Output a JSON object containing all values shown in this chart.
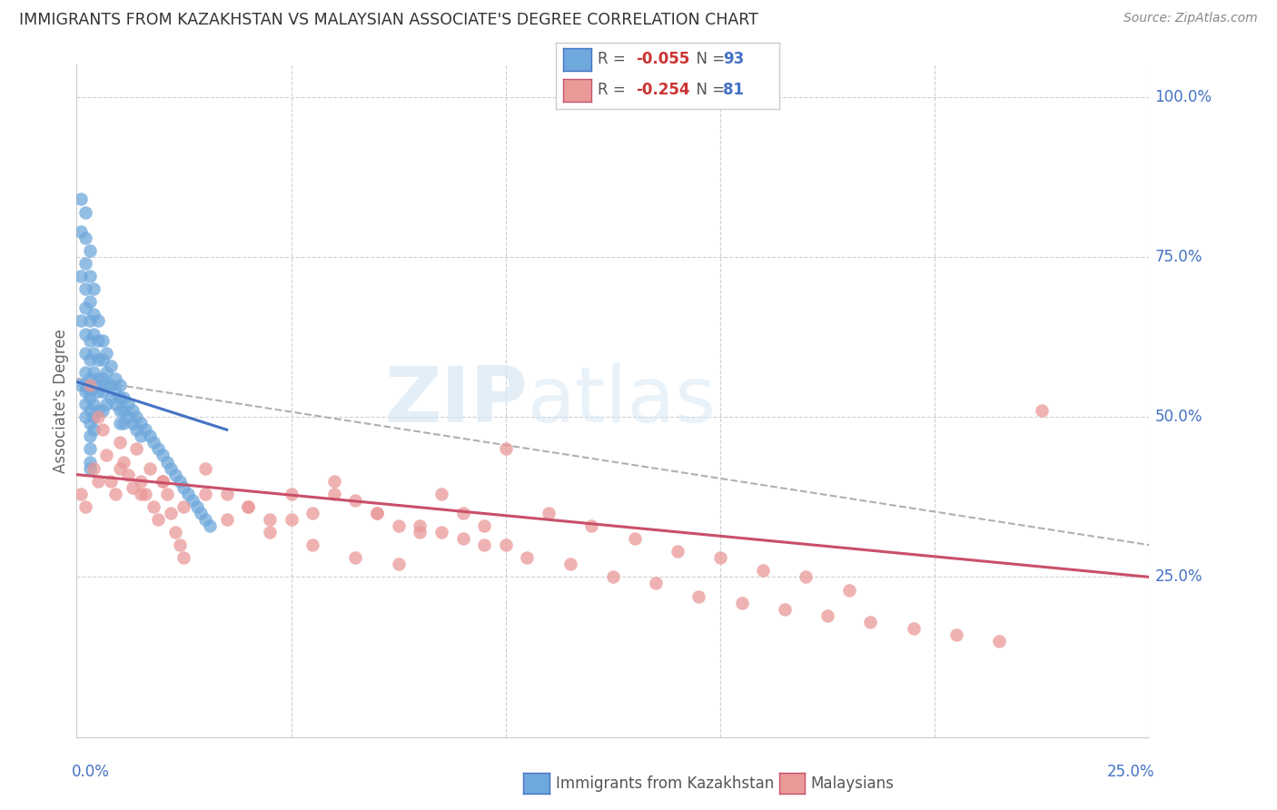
{
  "title": "IMMIGRANTS FROM KAZAKHSTAN VS MALAYSIAN ASSOCIATE'S DEGREE CORRELATION CHART",
  "source": "Source: ZipAtlas.com",
  "ylabel": "Associate's Degree",
  "color_kaz": "#6fa8dc",
  "color_mal": "#ea9999",
  "trendline_kaz_color": "#4472c4",
  "trendline_mal_color": "#c9506a",
  "trendline_dashed_color": "#b0b0b0",
  "background_color": "#ffffff",
  "grid_color": "#d0d0d0",
  "kaz_x": [
    0.001,
    0.001,
    0.001,
    0.001,
    0.002,
    0.002,
    0.002,
    0.002,
    0.002,
    0.002,
    0.002,
    0.002,
    0.002,
    0.002,
    0.002,
    0.003,
    0.003,
    0.003,
    0.003,
    0.003,
    0.003,
    0.003,
    0.003,
    0.003,
    0.003,
    0.003,
    0.003,
    0.003,
    0.003,
    0.004,
    0.004,
    0.004,
    0.004,
    0.004,
    0.004,
    0.004,
    0.004,
    0.004,
    0.005,
    0.005,
    0.005,
    0.005,
    0.005,
    0.005,
    0.006,
    0.006,
    0.006,
    0.006,
    0.006,
    0.007,
    0.007,
    0.007,
    0.007,
    0.008,
    0.008,
    0.008,
    0.009,
    0.009,
    0.009,
    0.01,
    0.01,
    0.01,
    0.01,
    0.011,
    0.011,
    0.011,
    0.012,
    0.012,
    0.013,
    0.013,
    0.014,
    0.014,
    0.015,
    0.015,
    0.016,
    0.017,
    0.018,
    0.019,
    0.02,
    0.021,
    0.022,
    0.023,
    0.024,
    0.025,
    0.026,
    0.027,
    0.028,
    0.029,
    0.03,
    0.031,
    0.001,
    0.002,
    0.003
  ],
  "kaz_y": [
    0.84,
    0.79,
    0.72,
    0.65,
    0.82,
    0.78,
    0.74,
    0.7,
    0.67,
    0.63,
    0.6,
    0.57,
    0.55,
    0.52,
    0.5,
    0.76,
    0.72,
    0.68,
    0.65,
    0.62,
    0.59,
    0.56,
    0.54,
    0.51,
    0.49,
    0.47,
    0.45,
    0.43,
    0.42,
    0.7,
    0.66,
    0.63,
    0.6,
    0.57,
    0.55,
    0.52,
    0.5,
    0.48,
    0.65,
    0.62,
    0.59,
    0.56,
    0.54,
    0.51,
    0.62,
    0.59,
    0.56,
    0.54,
    0.51,
    0.6,
    0.57,
    0.55,
    0.52,
    0.58,
    0.55,
    0.53,
    0.56,
    0.54,
    0.52,
    0.55,
    0.53,
    0.51,
    0.49,
    0.53,
    0.51,
    0.49,
    0.52,
    0.5,
    0.51,
    0.49,
    0.5,
    0.48,
    0.49,
    0.47,
    0.48,
    0.47,
    0.46,
    0.45,
    0.44,
    0.43,
    0.42,
    0.41,
    0.4,
    0.39,
    0.38,
    0.37,
    0.36,
    0.35,
    0.34,
    0.33,
    0.55,
    0.54,
    0.53
  ],
  "mal_x": [
    0.001,
    0.002,
    0.003,
    0.004,
    0.005,
    0.006,
    0.007,
    0.008,
    0.009,
    0.01,
    0.011,
    0.012,
    0.013,
    0.014,
    0.015,
    0.016,
    0.017,
    0.018,
    0.019,
    0.02,
    0.021,
    0.022,
    0.023,
    0.024,
    0.025,
    0.03,
    0.035,
    0.04,
    0.045,
    0.05,
    0.055,
    0.06,
    0.065,
    0.07,
    0.075,
    0.08,
    0.085,
    0.09,
    0.095,
    0.1,
    0.01,
    0.02,
    0.03,
    0.04,
    0.05,
    0.06,
    0.07,
    0.08,
    0.09,
    0.1,
    0.11,
    0.12,
    0.13,
    0.14,
    0.15,
    0.16,
    0.17,
    0.18,
    0.005,
    0.015,
    0.025,
    0.035,
    0.045,
    0.055,
    0.065,
    0.075,
    0.085,
    0.095,
    0.105,
    0.115,
    0.125,
    0.135,
    0.145,
    0.155,
    0.165,
    0.175,
    0.185,
    0.195,
    0.205,
    0.215,
    0.225
  ],
  "mal_y": [
    0.38,
    0.36,
    0.55,
    0.42,
    0.5,
    0.48,
    0.44,
    0.4,
    0.38,
    0.46,
    0.43,
    0.41,
    0.39,
    0.45,
    0.4,
    0.38,
    0.42,
    0.36,
    0.34,
    0.4,
    0.38,
    0.35,
    0.32,
    0.3,
    0.28,
    0.42,
    0.38,
    0.36,
    0.34,
    0.38,
    0.35,
    0.4,
    0.37,
    0.35,
    0.33,
    0.32,
    0.38,
    0.35,
    0.33,
    0.45,
    0.42,
    0.4,
    0.38,
    0.36,
    0.34,
    0.38,
    0.35,
    0.33,
    0.31,
    0.3,
    0.35,
    0.33,
    0.31,
    0.29,
    0.28,
    0.26,
    0.25,
    0.23,
    0.4,
    0.38,
    0.36,
    0.34,
    0.32,
    0.3,
    0.28,
    0.27,
    0.32,
    0.3,
    0.28,
    0.27,
    0.25,
    0.24,
    0.22,
    0.21,
    0.2,
    0.19,
    0.18,
    0.17,
    0.16,
    0.15,
    0.51
  ],
  "xlim": [
    0,
    0.25
  ],
  "ylim": [
    0,
    1.05
  ],
  "right_ytick_vals": [
    0.25,
    0.5,
    0.75,
    1.0
  ],
  "right_ytick_labels": [
    "25.0%",
    "50.0%",
    "75.0%",
    "100.0%"
  ],
  "kaz_trend_x0": 0.0,
  "kaz_trend_x1": 0.035,
  "kaz_trend_y0": 0.555,
  "kaz_trend_y1": 0.48,
  "mal_trend_x0": 0.0,
  "mal_trend_x1": 0.25,
  "mal_trend_y0": 0.41,
  "mal_trend_y1": 0.25,
  "dash_trend_x0": 0.0,
  "dash_trend_x1": 0.25,
  "dash_trend_y0": 0.56,
  "dash_trend_y1": 0.3,
  "legend_R1": "-0.055",
  "legend_N1": "93",
  "legend_R2": "-0.254",
  "legend_N2": "81",
  "watermark_zip": "ZIP",
  "watermark_atlas": "atlas"
}
